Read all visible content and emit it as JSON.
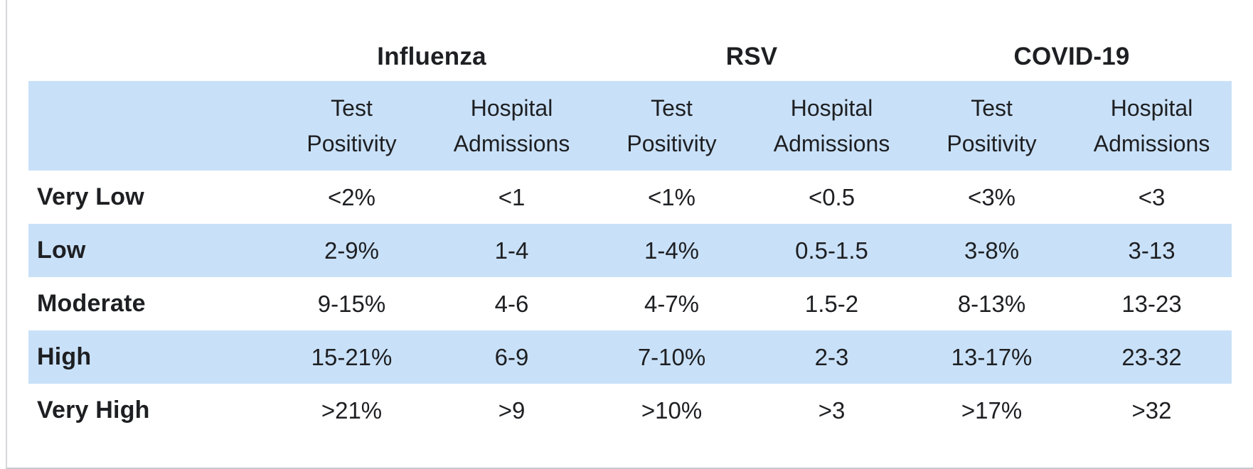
{
  "colors": {
    "band_blue": "#c9e1f8",
    "text": "#1e1f22",
    "frame_border": "#d0d1d5",
    "background": "#ffffff"
  },
  "table": {
    "groups": [
      {
        "label": "Influenza"
      },
      {
        "label": "RSV"
      },
      {
        "label": "COVID-19"
      }
    ],
    "col_headers": [
      {
        "line1": "Test",
        "line2": "Positivity"
      },
      {
        "line1": "Hospital",
        "line2": "Admissions"
      },
      {
        "line1": "Test",
        "line2": "Positivity"
      },
      {
        "line1": "Hospital",
        "line2": "Admissions"
      },
      {
        "line1": "Test",
        "line2": "Positivity"
      },
      {
        "line1": "Hospital",
        "line2": "Admissions"
      }
    ],
    "rows": [
      {
        "label": "Very Low",
        "shaded": false,
        "values": [
          "<2%",
          "<1",
          "<1%",
          "<0.5",
          "<3%",
          "<3"
        ]
      },
      {
        "label": "Low",
        "shaded": true,
        "values": [
          "2-9%",
          "1-4",
          "1-4%",
          "0.5-1.5",
          "3-8%",
          "3-13"
        ]
      },
      {
        "label": "Moderate",
        "shaded": false,
        "values": [
          "9-15%",
          "4-6",
          "4-7%",
          "1.5-2",
          "8-13%",
          "13-23"
        ]
      },
      {
        "label": "High",
        "shaded": true,
        "values": [
          "15-21%",
          "6-9",
          "7-10%",
          "2-3",
          "13-17%",
          "23-32"
        ]
      },
      {
        "label": "Very High",
        "shaded": false,
        "values": [
          ">21%",
          ">9",
          ">10%",
          ">3",
          ">17%",
          ">32"
        ]
      }
    ]
  },
  "chart_data": {
    "type": "table",
    "title": "",
    "column_groups": [
      "Influenza",
      "RSV",
      "COVID-19"
    ],
    "columns": [
      "Influenza Test Positivity",
      "Influenza Hospital Admissions",
      "RSV Test Positivity",
      "RSV Hospital Admissions",
      "COVID-19 Test Positivity",
      "COVID-19 Hospital Admissions"
    ],
    "row_labels": [
      "Very Low",
      "Low",
      "Moderate",
      "High",
      "Very High"
    ],
    "cells": [
      [
        "<2%",
        "<1",
        "<1%",
        "<0.5",
        "<3%",
        "<3"
      ],
      [
        "2-9%",
        "1-4",
        "1-4%",
        "0.5-1.5",
        "3-8%",
        "3-13"
      ],
      [
        "9-15%",
        "4-6",
        "4-7%",
        "1.5-2",
        "8-13%",
        "13-23"
      ],
      [
        "15-21%",
        "6-9",
        "7-10%",
        "2-3",
        "13-17%",
        "23-32"
      ],
      [
        ">21%",
        ">9",
        ">10%",
        ">3",
        ">17%",
        ">32"
      ]
    ],
    "layout_hints": {
      "shaded_rows": [
        "Low",
        "High"
      ],
      "shaded_color": "#c9e1f8",
      "header_band_color": "#c9e1f8",
      "grid": "off"
    }
  }
}
